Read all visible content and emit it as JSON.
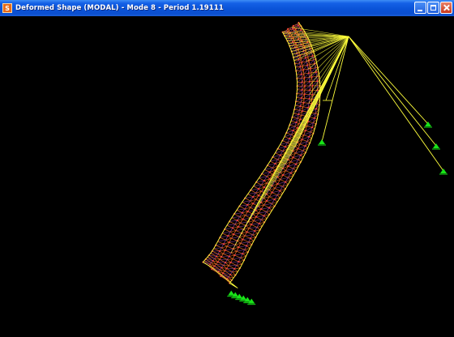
{
  "window": {
    "app_icon_letter": "S",
    "title": "Deformed Shape (MODAL) - Mode 8 - Period 1.19111"
  },
  "colors": {
    "mesh_orange": "#e0641e",
    "mesh_purple": "#7a3a8a",
    "node_red": "#ff4040",
    "cable_yellow": "#ffff3c",
    "support_green": "#18e418",
    "background": "#000000"
  },
  "icons": [
    "minimize-icon",
    "maximize-icon",
    "close-icon"
  ]
}
